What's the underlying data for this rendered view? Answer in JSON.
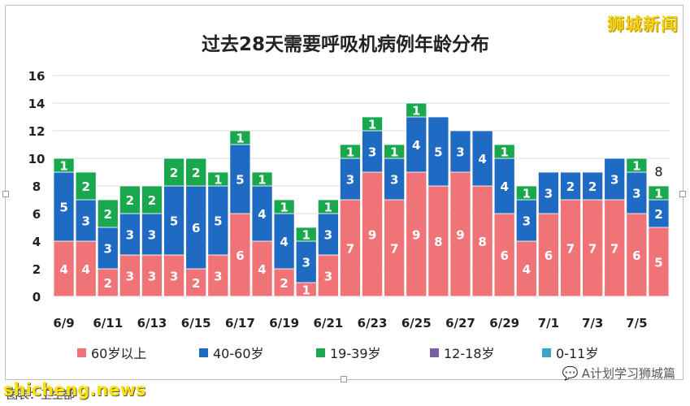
{
  "watermark_top": "狮城新闻",
  "watermark_bottom_left": "shicheng.news",
  "watermark_bottom_right": "A计划学习狮城篇",
  "caption": "图表：卫生部",
  "colors": {
    "s60": "#f07378",
    "s40": "#1f6bc4",
    "s19": "#19a84d",
    "s12": "#7b5ea7",
    "s0": "#3aa6c4"
  },
  "chart_data": {
    "type": "bar",
    "stacked": true,
    "title": "过去28天需要呼吸机病例年龄分布",
    "categories": [
      "6/9",
      "6/10",
      "6/11",
      "6/12",
      "6/13",
      "6/14",
      "6/15",
      "6/16",
      "6/17",
      "6/18",
      "6/19",
      "6/20",
      "6/21",
      "6/22",
      "6/23",
      "6/24",
      "6/25",
      "6/26",
      "6/27",
      "6/28",
      "6/29",
      "6/30",
      "7/1",
      "7/2",
      "7/3",
      "7/4",
      "7/5",
      "7/6"
    ],
    "x_tick_labels": [
      "6/9",
      "6/11",
      "6/13",
      "6/15",
      "6/17",
      "6/19",
      "6/21",
      "6/23",
      "6/25",
      "6/27",
      "6/29",
      "7/1",
      "7/3",
      "7/5"
    ],
    "ylim": [
      0,
      16
    ],
    "yticks": [
      0,
      2,
      4,
      6,
      8,
      10,
      12,
      14,
      16
    ],
    "grid": true,
    "legend_position": "bottom",
    "series": [
      {
        "name": "60岁以上",
        "color_key": "s60",
        "values": [
          4,
          4,
          2,
          3,
          3,
          3,
          2,
          3,
          6,
          4,
          2,
          1,
          3,
          7,
          9,
          7,
          9,
          8,
          9,
          8,
          6,
          4,
          6,
          7,
          7,
          7,
          6,
          5
        ]
      },
      {
        "name": "40-60岁",
        "color_key": "s40",
        "values": [
          5,
          3,
          3,
          3,
          3,
          5,
          6,
          5,
          5,
          4,
          4,
          3,
          3,
          3,
          3,
          3,
          4,
          5,
          3,
          4,
          4,
          3,
          3,
          2,
          2,
          3,
          3,
          2
        ]
      },
      {
        "name": "19-39岁",
        "color_key": "s19",
        "values": [
          1,
          2,
          2,
          2,
          2,
          2,
          2,
          1,
          1,
          1,
          1,
          1,
          1,
          1,
          1,
          1,
          1,
          0,
          0,
          0,
          1,
          1,
          0,
          0,
          0,
          0,
          1,
          1
        ]
      },
      {
        "name": "12-18岁",
        "color_key": "s12",
        "values": [
          0,
          0,
          0,
          0,
          0,
          0,
          0,
          0,
          0,
          0,
          0,
          0,
          0,
          0,
          0,
          0,
          0,
          0,
          0,
          0,
          0,
          0,
          0,
          0,
          0,
          0,
          0,
          0
        ]
      },
      {
        "name": "0-11岁",
        "color_key": "s0",
        "values": [
          0,
          0,
          0,
          0,
          0,
          0,
          0,
          0,
          0,
          0,
          0,
          0,
          0,
          0,
          0,
          0,
          0,
          0,
          0,
          0,
          0,
          0,
          0,
          0,
          0,
          0,
          0,
          0
        ]
      }
    ],
    "annotations": [
      {
        "category": "7/6",
        "text": "8"
      }
    ]
  }
}
